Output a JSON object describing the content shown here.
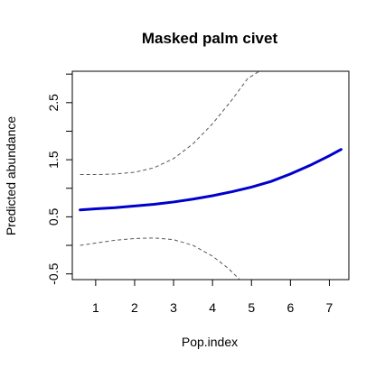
{
  "chart_data": {
    "type": "line",
    "title": "Masked palm civet",
    "xlabel": "Pop.index",
    "ylabel": "Predicted abundance",
    "xlim": [
      0.4,
      7.5
    ],
    "ylim": [
      -0.6,
      3.05
    ],
    "x_ticks": [
      1,
      2,
      3,
      4,
      5,
      6,
      7
    ],
    "y_ticks": [
      -0.5,
      0.5,
      1.5,
      2.5
    ],
    "y_minor_ticks": [
      0,
      1,
      2,
      3
    ],
    "grid": false,
    "series": [
      {
        "role": "fit",
        "color": "#0000cc",
        "style": "solid",
        "x": [
          0.6,
          1.0,
          1.5,
          2.0,
          2.5,
          3.0,
          3.5,
          4.0,
          4.5,
          5.0,
          5.5,
          6.0,
          6.5,
          7.0,
          7.3
        ],
        "y": [
          0.62,
          0.64,
          0.66,
          0.69,
          0.72,
          0.76,
          0.81,
          0.87,
          0.94,
          1.02,
          1.12,
          1.25,
          1.4,
          1.57,
          1.68
        ]
      },
      {
        "role": "upper-ci",
        "color": "#555555",
        "style": "dashed",
        "x": [
          0.6,
          1.0,
          1.5,
          2.0,
          2.5,
          3.0,
          3.5,
          4.0,
          4.5,
          4.9,
          5.2
        ],
        "y": [
          1.24,
          1.24,
          1.25,
          1.28,
          1.36,
          1.52,
          1.78,
          2.13,
          2.55,
          2.92,
          3.05
        ]
      },
      {
        "role": "lower-ci",
        "color": "#555555",
        "style": "dashed",
        "x": [
          0.6,
          1.0,
          1.5,
          2.0,
          2.5,
          3.0,
          3.5,
          4.0,
          4.4,
          4.7
        ],
        "y": [
          0.0,
          0.04,
          0.09,
          0.12,
          0.13,
          0.1,
          0.0,
          -0.19,
          -0.4,
          -0.6
        ]
      }
    ]
  }
}
